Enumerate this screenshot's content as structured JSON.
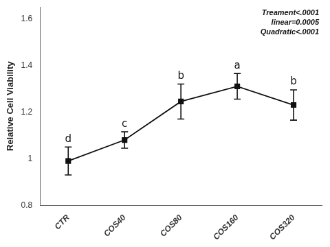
{
  "chart_data": {
    "type": "line",
    "categories": [
      "CTR",
      "COS40",
      "COS80",
      "COS160",
      "COS320"
    ],
    "values": [
      0.99,
      1.08,
      1.245,
      1.31,
      1.23
    ],
    "errors": [
      0.06,
      0.035,
      0.075,
      0.055,
      0.065
    ],
    "letters": [
      "d",
      "c",
      "b",
      "a",
      "b"
    ],
    "ylabel": "Relative Cell Viability",
    "annotation": "Treament<.0001\nlinear=0.0005\nQuadratic<.0001",
    "color": "#111111",
    "marker": "square",
    "ylim": [
      0.8,
      1.65
    ],
    "yticks": [
      0.8,
      1,
      1.2,
      1.4,
      1.6
    ],
    "grid": false
  }
}
